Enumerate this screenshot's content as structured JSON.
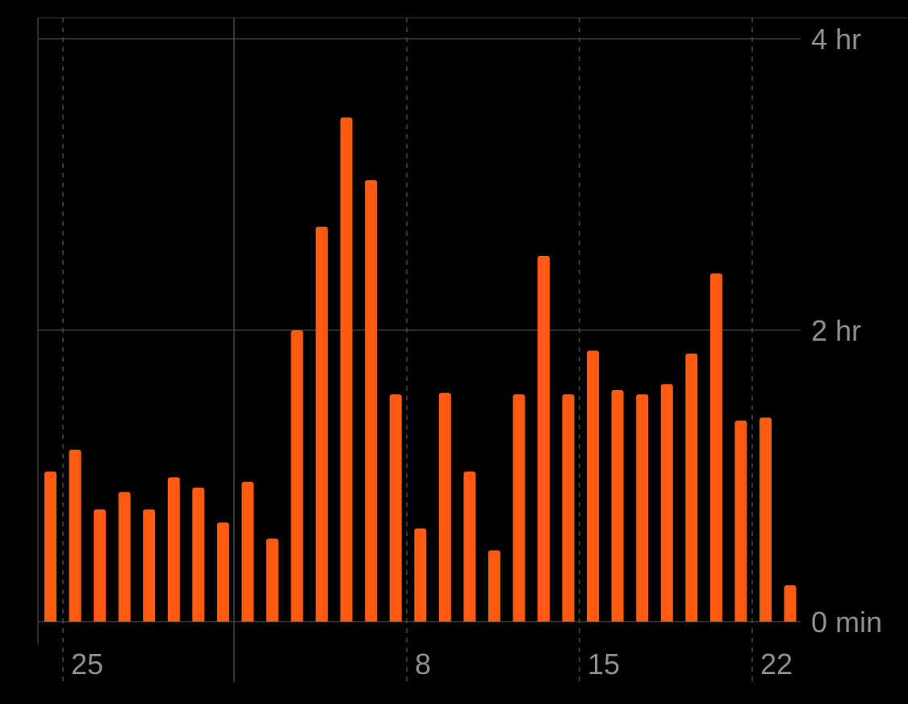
{
  "chart_data": {
    "type": "bar",
    "title": "",
    "xlabel": "",
    "ylabel": "",
    "y_unit": "hours",
    "ylim": [
      0,
      4
    ],
    "y_ticks": [
      {
        "value": 0,
        "label": "0 min"
      },
      {
        "value": 2,
        "label": "2 hr"
      },
      {
        "value": 4,
        "label": "4 hr"
      }
    ],
    "x_ticks": [
      {
        "index": 0,
        "label": "25",
        "style": "dashed"
      },
      {
        "index": 7,
        "label": "",
        "style": "solid"
      },
      {
        "index": 14,
        "label": "8",
        "style": "dashed"
      },
      {
        "index": 21,
        "label": "15",
        "style": "dashed"
      },
      {
        "index": 28,
        "label": "22",
        "style": "dashed"
      }
    ],
    "grid": true,
    "bar_color": "#ff5a12",
    "values": [
      1.03,
      1.18,
      0.77,
      0.89,
      0.77,
      0.99,
      0.92,
      0.68,
      0.96,
      0.57,
      2.0,
      2.71,
      3.46,
      3.03,
      1.56,
      0.64,
      1.57,
      1.03,
      0.49,
      1.56,
      2.51,
      1.56,
      1.86,
      1.59,
      1.56,
      1.63,
      1.84,
      2.39,
      1.38,
      1.4,
      0.25
    ]
  }
}
